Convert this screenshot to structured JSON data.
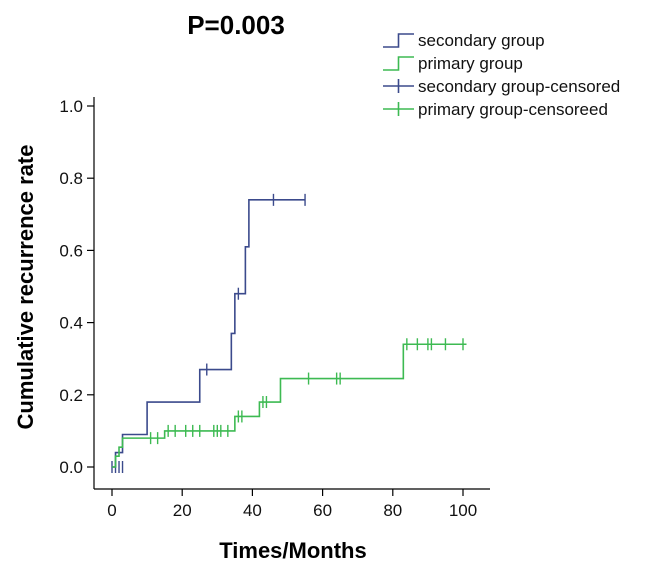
{
  "chart_data": {
    "type": "line",
    "subtype": "kaplan-meier-step",
    "title": "P=0.003",
    "xlabel": "Times/Months",
    "ylabel": "Cumulative recurrence rate",
    "xlim": [
      0,
      105
    ],
    "ylim": [
      0,
      1.05
    ],
    "x_ticks": [
      0,
      20,
      40,
      60,
      80,
      100
    ],
    "y_ticks": [
      0.0,
      0.2,
      0.4,
      0.6,
      0.8,
      1.0
    ],
    "x_tick_labels": [
      "0",
      "20",
      "40",
      "60",
      "80",
      "100"
    ],
    "y_tick_labels": [
      "0.0",
      "0.2",
      "0.4",
      "0.6",
      "0.8",
      "1.0"
    ],
    "grid": false,
    "legend_position": "top-right",
    "legend": [
      {
        "label": "secondary group",
        "series": "secondary",
        "kind": "line"
      },
      {
        "label": "primary group",
        "series": "primary",
        "kind": "line"
      },
      {
        "label": "secondary group-censored",
        "series": "secondary",
        "kind": "censor"
      },
      {
        "label": "primary group-censoreed",
        "series": "primary",
        "kind": "censor"
      }
    ],
    "series": [
      {
        "name": "secondary group",
        "key": "secondary",
        "color": "#3b4a8c",
        "steps": [
          [
            0,
            0
          ],
          [
            1,
            0.04
          ],
          [
            3,
            0.09
          ],
          [
            10,
            0.18
          ],
          [
            25,
            0.27
          ],
          [
            34,
            0.37
          ],
          [
            35,
            0.48
          ],
          [
            38,
            0.61
          ],
          [
            39,
            0.74
          ],
          [
            55,
            0.74
          ]
        ],
        "censored": [
          [
            0,
            0
          ],
          [
            1,
            0
          ],
          [
            2,
            0
          ],
          [
            3,
            0
          ],
          [
            27,
            0.27
          ],
          [
            36,
            0.48
          ],
          [
            46,
            0.74
          ],
          [
            55,
            0.74
          ]
        ]
      },
      {
        "name": "primary group",
        "key": "primary",
        "color": "#3dba52",
        "steps": [
          [
            0,
            0
          ],
          [
            1,
            0.03
          ],
          [
            2,
            0.055
          ],
          [
            3,
            0.08
          ],
          [
            15,
            0.1
          ],
          [
            35,
            0.14
          ],
          [
            42,
            0.18
          ],
          [
            48,
            0.245
          ],
          [
            83,
            0.34
          ],
          [
            101,
            0.34
          ]
        ],
        "censored": [
          [
            11,
            0.08
          ],
          [
            13,
            0.08
          ],
          [
            16,
            0.1
          ],
          [
            18,
            0.1
          ],
          [
            21,
            0.1
          ],
          [
            23,
            0.1
          ],
          [
            25,
            0.1
          ],
          [
            29,
            0.1
          ],
          [
            30,
            0.1
          ],
          [
            31,
            0.1
          ],
          [
            33,
            0.1
          ],
          [
            36,
            0.14
          ],
          [
            37,
            0.14
          ],
          [
            43,
            0.18
          ],
          [
            44,
            0.18
          ],
          [
            56,
            0.245
          ],
          [
            64,
            0.245
          ],
          [
            65,
            0.245
          ],
          [
            84,
            0.34
          ],
          [
            87,
            0.34
          ],
          [
            90,
            0.34
          ],
          [
            91,
            0.34
          ],
          [
            95,
            0.34
          ],
          [
            100,
            0.34
          ]
        ]
      }
    ]
  }
}
